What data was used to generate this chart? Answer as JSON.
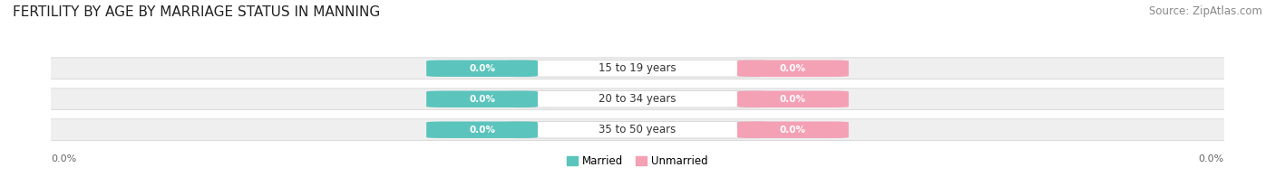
{
  "title": "FERTILITY BY AGE BY MARRIAGE STATUS IN MANNING",
  "source": "Source: ZipAtlas.com",
  "categories": [
    "15 to 19 years",
    "20 to 34 years",
    "35 to 50 years"
  ],
  "married_values": [
    "0.0%",
    "0.0%",
    "0.0%"
  ],
  "unmarried_values": [
    "0.0%",
    "0.0%",
    "0.0%"
  ],
  "married_color": "#5bc4bc",
  "unmarried_color": "#f4a0b5",
  "bar_bg_color": "#efefef",
  "title_fontsize": 11,
  "source_fontsize": 8.5,
  "label_fontsize": 8,
  "badge_fontsize": 7.5,
  "cat_fontsize": 8.5,
  "x_left_label": "0.0%",
  "x_right_label": "0.0%",
  "legend_married": "Married",
  "legend_unmarried": "Unmarried",
  "fig_bg_color": "#ffffff"
}
